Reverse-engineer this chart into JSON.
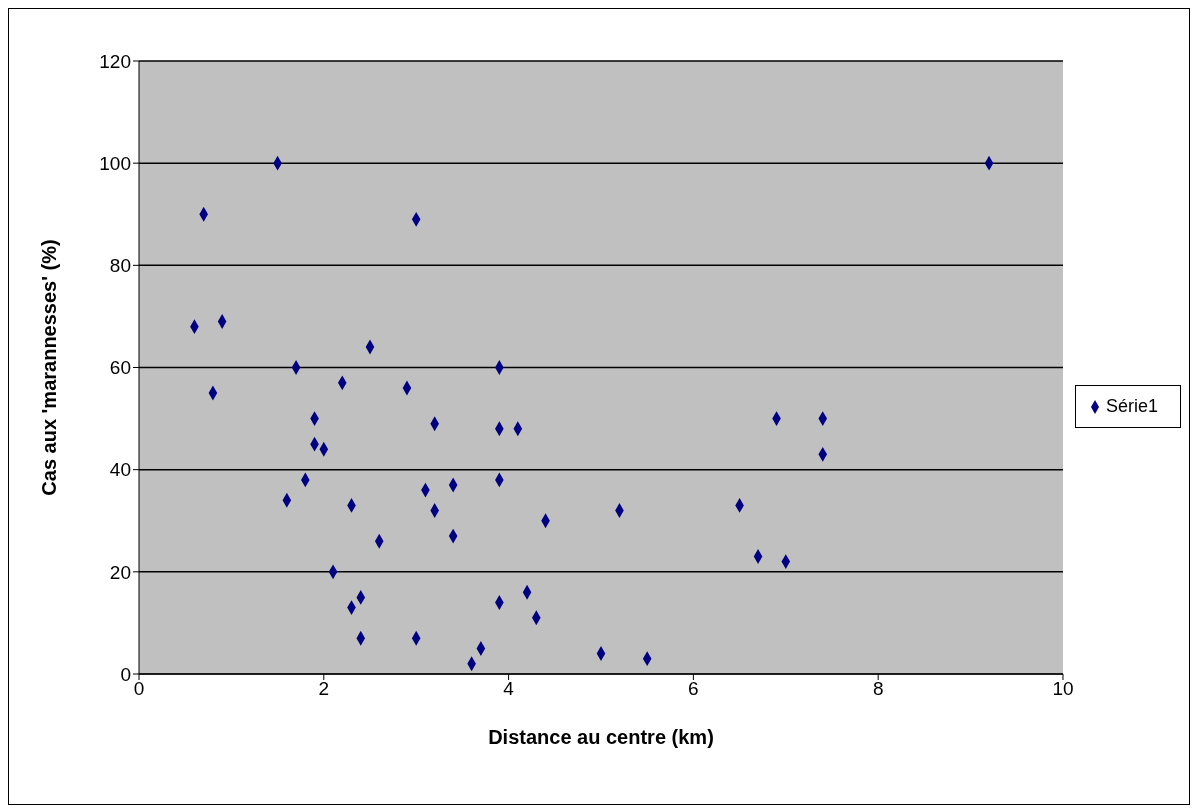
{
  "chart_data": {
    "type": "scatter",
    "xlabel": "Distance au centre (km)",
    "ylabel": "Cas aux 'marannesses' (%)",
    "x": [
      0.6,
      0.7,
      0.8,
      0.9,
      1.5,
      1.6,
      1.7,
      1.8,
      1.9,
      1.9,
      2.0,
      2.1,
      2.2,
      2.3,
      2.3,
      2.4,
      2.4,
      2.5,
      2.6,
      2.9,
      3.0,
      3.0,
      3.1,
      3.2,
      3.2,
      3.4,
      3.4,
      3.6,
      3.7,
      3.9,
      3.9,
      3.9,
      3.9,
      4.1,
      4.2,
      4.3,
      4.4,
      5.0,
      5.2,
      5.5,
      6.5,
      6.7,
      6.9,
      7.0,
      7.4,
      7.4,
      9.2
    ],
    "series": [
      {
        "name": "Série1",
        "color": "#000080",
        "values": [
          68,
          90,
          55,
          69,
          100,
          34,
          60,
          38,
          50,
          45,
          44,
          20,
          57,
          33,
          13,
          15,
          7,
          64,
          26,
          56,
          89,
          7,
          36,
          49,
          32,
          37,
          27,
          2,
          5,
          60,
          48,
          38,
          14,
          48,
          16,
          11,
          30,
          4,
          32,
          3,
          33,
          23,
          50,
          22,
          50,
          43,
          100
        ]
      }
    ],
    "xlim": [
      0,
      10
    ],
    "xticks": [
      0,
      2,
      4,
      6,
      8,
      10
    ],
    "ylim": [
      0,
      120
    ],
    "yticks": [
      0,
      20,
      40,
      60,
      80,
      100,
      120
    ],
    "grid": "y",
    "legend": "right",
    "marker": "diamond"
  }
}
